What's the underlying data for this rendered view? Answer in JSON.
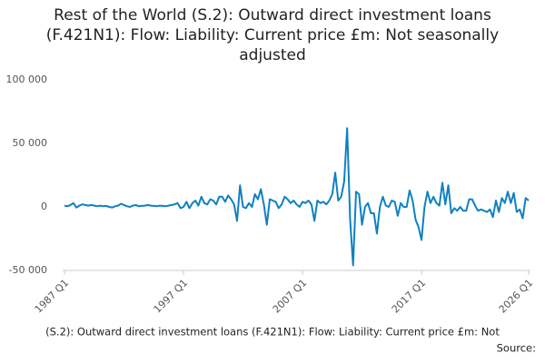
{
  "chart_data": {
    "type": "line",
    "title": "Rest of the World (S.2): Outward direct investment loans (F.421N1): Flow: Liability: Current price £m: Not seasonally adjusted",
    "footer": "(S.2): Outward direct investment loans (F.421N1): Flow: Liability: Current price £m: Not",
    "source": "Source:",
    "categories": [
      "1987 Q1",
      null,
      null,
      null,
      null,
      null,
      null,
      null,
      null,
      null,
      null,
      null,
      null,
      null,
      null,
      null,
      null,
      null,
      null,
      null,
      null,
      null,
      null,
      null,
      null,
      null,
      null,
      null,
      null,
      null,
      null,
      null,
      null,
      null,
      null,
      null,
      null,
      null,
      null,
      null,
      "1997 Q1",
      null,
      null,
      null,
      null,
      null,
      null,
      null,
      null,
      null,
      null,
      null,
      null,
      null,
      null,
      null,
      null,
      null,
      null,
      null,
      null,
      null,
      null,
      null,
      null,
      null,
      null,
      null,
      null,
      null,
      null,
      null,
      null,
      null,
      null,
      null,
      null,
      null,
      null,
      null,
      "2007 Q1",
      null,
      null,
      null,
      null,
      null,
      null,
      null,
      null,
      null,
      null,
      null,
      null,
      null,
      null,
      null,
      null,
      null,
      null,
      null,
      null,
      null,
      null,
      null,
      null,
      null,
      null,
      null,
      null,
      null,
      null,
      null,
      null,
      null,
      null,
      null,
      null,
      null,
      null,
      null,
      "2017 Q1",
      null,
      null,
      null,
      null,
      null,
      null,
      null,
      null,
      null,
      null,
      null,
      null,
      null,
      null,
      null,
      null,
      null,
      null,
      null,
      null,
      null,
      null,
      null,
      null,
      null,
      null,
      null,
      null,
      null,
      null,
      null,
      null,
      null,
      null,
      null,
      "2026 Q1"
    ],
    "series": [
      {
        "color": "#0f81c1",
        "values": [
          1000,
          500,
          1500,
          3000,
          -500,
          1000,
          2000,
          1500,
          1000,
          1500,
          1000,
          500,
          1000,
          500,
          800,
          0,
          -500,
          500,
          1000,
          2500,
          1500,
          500,
          0,
          1000,
          1500,
          500,
          800,
          1000,
          1500,
          1000,
          800,
          500,
          1000,
          800,
          500,
          1000,
          1500,
          2000,
          3000,
          -1000,
          0,
          4000,
          -1000,
          3000,
          5000,
          1000,
          8000,
          3000,
          2000,
          6000,
          5000,
          2000,
          8000,
          8000,
          4000,
          9000,
          6000,
          2000,
          -11000,
          17000,
          0,
          -1000,
          3000,
          0,
          10000,
          6000,
          14000,
          2000,
          -14000,
          6000,
          5000,
          4000,
          -1000,
          2000,
          8000,
          6000,
          3000,
          5000,
          2000,
          0,
          4000,
          3000,
          5000,
          2000,
          -11000,
          5000,
          3000,
          4000,
          2000,
          5000,
          10000,
          27000,
          5000,
          8000,
          20000,
          62000,
          -10000,
          -46000,
          12000,
          10000,
          -14000,
          0,
          3000,
          -5000,
          -5000,
          -21000,
          0,
          8000,
          1000,
          0,
          5000,
          4000,
          -7000,
          3000,
          0,
          0,
          13000,
          5000,
          -10000,
          -16000,
          -26000,
          0,
          12000,
          3000,
          8000,
          3000,
          1000,
          19000,
          2000,
          17000,
          -5000,
          -1000,
          -3000,
          0,
          -3000,
          -3000,
          6000,
          6000,
          1000,
          -3000,
          -2000,
          -3000,
          -4000,
          -2000,
          -8000,
          5000,
          -4000,
          7000,
          3000,
          12000,
          3000,
          11000,
          -4000,
          -2000,
          -9000,
          7000,
          5000
        ]
      }
    ],
    "ylim": [
      -50000,
      100000
    ],
    "yticks": [
      {
        "value": -50000,
        "label": "-50 000"
      },
      0,
      {
        "value": 50000,
        "label": "50 000"
      },
      {
        "value": 100000,
        "label": "100 000"
      }
    ],
    "grid": false
  }
}
